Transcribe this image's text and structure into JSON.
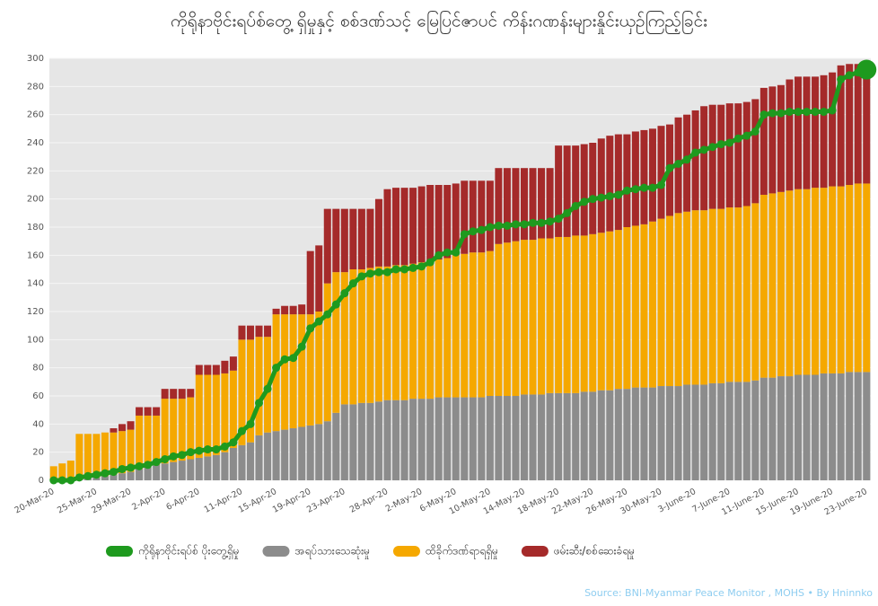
{
  "chart_data": {
    "type": "bar",
    "stacked": true,
    "title": "ကိုရိုနာဗိုင်းရပ်စ်တွေ့ ရှိမှုနှင့် စစ်ဒဏ်သင့် မြေပြင်ဇာပင် ကိန်းဂဏန်းများနှိုင်းယှဉ်ကြည့်ခြင်း",
    "source": "Source: BNI-Myanmar Peace Monitor , MOHS • By Hninnko",
    "categories": [
      "20-Mar-20",
      null,
      null,
      null,
      null,
      "25-Mar-20",
      null,
      null,
      null,
      "29-Mar-20",
      null,
      null,
      null,
      "2-Apr-20",
      null,
      null,
      null,
      "6-Apr-20",
      null,
      null,
      null,
      null,
      "11-Apr-20",
      null,
      null,
      null,
      "15-Apr-20",
      null,
      null,
      null,
      "19-Apr-20",
      null,
      null,
      null,
      "23-Apr-20",
      null,
      null,
      null,
      null,
      "28-Apr-20",
      null,
      null,
      null,
      "2-May-20",
      null,
      null,
      null,
      "6-May-20",
      null,
      null,
      null,
      "10-May-20",
      null,
      null,
      null,
      "14-May-20",
      null,
      null,
      null,
      "18-May-20",
      null,
      null,
      null,
      "22-May-20",
      null,
      null,
      null,
      "26-May-20",
      null,
      null,
      null,
      "30-May-20",
      null,
      null,
      null,
      "3-June-20",
      null,
      null,
      null,
      "7-June-20",
      null,
      null,
      null,
      "11-June-20",
      null,
      null,
      null,
      "15-June-20",
      null,
      null,
      null,
      "19-June-20",
      null,
      null,
      null,
      "23-June-20"
    ],
    "series": [
      {
        "name": "ကိုရိုနာဗိုင်းရပ်စ် ပိုးတွေ့ရှိမှု",
        "type": "line",
        "color": "#1e9a1e",
        "values": [
          0,
          0,
          0,
          2,
          3,
          4,
          5,
          6,
          8,
          9,
          10,
          11,
          13,
          15,
          17,
          18,
          20,
          21,
          22,
          22,
          24,
          27,
          35,
          40,
          55,
          65,
          80,
          86,
          87,
          95,
          108,
          113,
          118,
          125,
          133,
          140,
          145,
          147,
          148,
          148,
          150,
          150,
          151,
          152,
          155,
          160,
          162,
          162,
          175,
          177,
          178,
          180,
          181,
          181,
          182,
          182,
          183,
          183,
          184,
          186,
          190,
          195,
          198,
          200,
          201,
          202,
          203,
          206,
          207,
          208,
          208,
          210,
          222,
          225,
          228,
          233,
          235,
          237,
          239,
          240,
          243,
          245,
          248,
          260,
          261,
          261,
          262,
          262,
          262,
          262,
          262,
          263,
          285,
          288,
          290,
          292
        ]
      },
      {
        "name": "အရပ်သားသေဆုံးမှု",
        "color": "#8c8c8c",
        "values": [
          0,
          0,
          1,
          1,
          2,
          2,
          3,
          4,
          5,
          6,
          8,
          10,
          11,
          12,
          13,
          14,
          15,
          16,
          17,
          18,
          20,
          23,
          25,
          27,
          32,
          34,
          35,
          36,
          37,
          38,
          39,
          40,
          42,
          48,
          54,
          54,
          55,
          55,
          56,
          57,
          57,
          57,
          58,
          58,
          58,
          59,
          59,
          59,
          59,
          59,
          59,
          60,
          60,
          60,
          60,
          61,
          61,
          61,
          62,
          62,
          62,
          62,
          63,
          63,
          64,
          64,
          65,
          65,
          66,
          66,
          66,
          67,
          67,
          67,
          68,
          68,
          68,
          69,
          69,
          70,
          70,
          70,
          71,
          73,
          73,
          74,
          74,
          75,
          75,
          75,
          76,
          76,
          76,
          77,
          77,
          77
        ]
      },
      {
        "name": "ထိခိုက်ဒဏ်ရာရရှိမှု",
        "color": "#f5a800",
        "values": [
          10,
          12,
          13,
          32,
          31,
          31,
          31,
          30,
          30,
          30,
          38,
          36,
          35,
          46,
          45,
          44,
          44,
          59,
          58,
          57,
          56,
          55,
          75,
          73,
          70,
          68,
          83,
          82,
          81,
          80,
          79,
          80,
          98,
          100,
          94,
          96,
          95,
          96,
          96,
          95,
          96,
          96,
          96,
          97,
          98,
          98,
          99,
          101,
          102,
          103,
          103,
          103,
          108,
          109,
          110,
          110,
          110,
          111,
          110,
          111,
          111,
          112,
          111,
          112,
          112,
          113,
          113,
          115,
          115,
          116,
          118,
          119,
          121,
          123,
          123,
          124,
          124,
          124,
          124,
          124,
          124,
          125,
          126,
          130,
          131,
          131,
          132,
          132,
          132,
          133,
          132,
          133,
          133,
          133,
          134,
          134
        ]
      },
      {
        "name": "ဖမ်းဆီး/စစ်ဆေးခံရမှု",
        "color": "#a52a2a",
        "values": [
          0,
          0,
          0,
          0,
          0,
          0,
          0,
          3,
          5,
          6,
          6,
          6,
          6,
          7,
          7,
          7,
          6,
          7,
          7,
          7,
          9,
          10,
          10,
          10,
          8,
          8,
          4,
          6,
          6,
          7,
          45,
          47,
          53,
          45,
          45,
          43,
          43,
          42,
          48,
          55,
          55,
          55,
          54,
          54,
          54,
          53,
          52,
          51,
          52,
          51,
          51,
          50,
          54,
          53,
          52,
          51,
          51,
          50,
          50,
          65,
          65,
          64,
          65,
          65,
          67,
          68,
          68,
          66,
          67,
          67,
          66,
          66,
          65,
          68,
          69,
          71,
          74,
          74,
          74,
          74,
          74,
          74,
          74,
          76,
          76,
          76,
          79,
          80,
          80,
          79,
          80,
          81,
          86,
          86,
          85,
          86
        ]
      }
    ],
    "ylim": [
      0,
      300
    ],
    "yticks": [
      0,
      20,
      40,
      60,
      80,
      100,
      120,
      140,
      160,
      180,
      200,
      220,
      240,
      260,
      280,
      300
    ],
    "grid": true,
    "legend": "bottom"
  }
}
